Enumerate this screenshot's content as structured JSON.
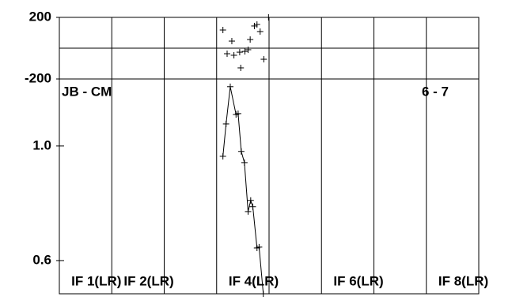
{
  "chart_data": [
    {
      "type": "scatter",
      "x": [
        3.62,
        3.7,
        3.79,
        3.83,
        3.94,
        3.96,
        4.04,
        4.1,
        4.14,
        4.22,
        4.27,
        4.33,
        4.4,
        4.49
      ],
      "values": [
        118,
        -36,
        46,
        -46,
        -26,
        -128,
        -21,
        -10,
        56,
        144,
        154,
        108,
        -72,
        200
      ],
      "xlim": [
        0.5,
        8.5
      ],
      "ylim": [
        -200,
        200
      ],
      "yticks": [
        -200,
        200
      ],
      "zero_line": true
    },
    {
      "type": "line",
      "annotations": [
        "JB - CM",
        "6 - 7"
      ],
      "x": [
        3.62,
        3.68,
        3.76,
        3.87,
        3.91,
        3.97,
        4.03,
        4.1,
        4.15,
        4.19,
        4.27,
        4.31,
        4.39
      ],
      "values": [
        0.964,
        1.077,
        1.207,
        1.11,
        1.113,
        0.981,
        0.942,
        0.771,
        0.81,
        0.788,
        0.644,
        0.647,
        0.484
      ],
      "xlim": [
        0.5,
        8.5
      ],
      "ylim": [
        0.484,
        1.234
      ],
      "yticks": [
        0.6,
        {
          "value": 1.0,
          "label": "1.0"
        }
      ],
      "panel_labels": [
        "IF 1(LR)",
        "IF 2(LR)",
        "IF 4(LR)",
        "IF 6(LR)",
        "IF 8(LR)"
      ],
      "panel_label_x": [
        1,
        2,
        4,
        6,
        8
      ]
    }
  ]
}
